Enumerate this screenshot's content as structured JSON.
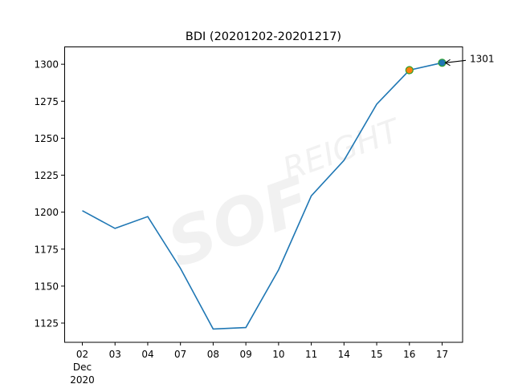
{
  "chart_data": {
    "type": "line",
    "title": "BDI (20201202-20201217)",
    "xlabel": "",
    "ylabel": "",
    "categories": [
      "02\nDec\n2020",
      "03",
      "04",
      "07",
      "08",
      "09",
      "10",
      "11",
      "14",
      "15",
      "16",
      "17"
    ],
    "tick_labels": [
      "02",
      "03",
      "04",
      "07",
      "08",
      "09",
      "10",
      "11",
      "14",
      "15",
      "16",
      "17"
    ],
    "x_sublabels": [
      "Dec",
      "2020"
    ],
    "values": [
      1201,
      1189,
      1197,
      1162,
      1121,
      1122,
      1161,
      1211,
      1235,
      1273,
      1296,
      1301
    ],
    "ylim": [
      1112,
      1312
    ],
    "yticks": [
      1125,
      1150,
      1175,
      1200,
      1225,
      1250,
      1275,
      1300
    ],
    "grid": false,
    "line_color": "#1f77b4",
    "highlight_points": [
      {
        "category": "16",
        "value": 1296,
        "fill": "#ff7f0e",
        "edge": "#2ca02c"
      },
      {
        "category": "17",
        "value": 1301,
        "fill": "#1f77b4",
        "edge": "#2ca02c"
      }
    ],
    "annotation": {
      "text": "1301",
      "category": "17",
      "value": 1301
    }
  }
}
